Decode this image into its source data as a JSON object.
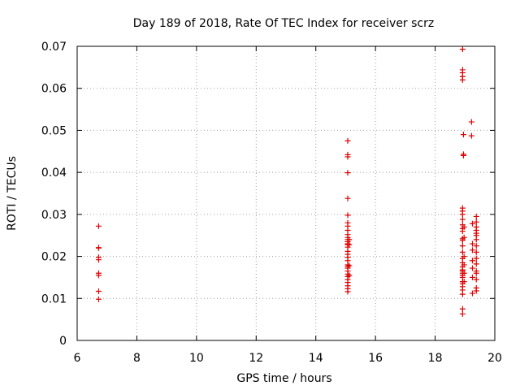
{
  "chart_data": {
    "type": "scatter",
    "title": "Day 189 of 2018, Rate Of TEC Index for receiver scrz",
    "xlabel": "GPS time / hours",
    "ylabel": "ROTI / TECUs",
    "xlim": [
      6,
      20
    ],
    "ylim": [
      0,
      0.07
    ],
    "xticks": [
      "6",
      "8",
      "10",
      "12",
      "14",
      "16",
      "18",
      "20"
    ],
    "yticks": [
      "0",
      "0.01",
      "0.02",
      "0.03",
      "0.04",
      "0.05",
      "0.06",
      "0.07"
    ],
    "grid": true,
    "marker": "+",
    "color": "#e00000",
    "series": [
      {
        "points": [
          [
            6.72,
            0.0272
          ],
          [
            6.72,
            0.0221
          ],
          [
            6.72,
            0.022
          ],
          [
            6.72,
            0.0198
          ],
          [
            6.72,
            0.0192
          ],
          [
            6.72,
            0.016
          ],
          [
            6.72,
            0.0155
          ],
          [
            6.72,
            0.0117
          ],
          [
            6.72,
            0.0098
          ],
          [
            15.07,
            0.0475
          ],
          [
            15.07,
            0.0442
          ],
          [
            15.07,
            0.0437
          ],
          [
            15.07,
            0.0399
          ],
          [
            15.07,
            0.0338
          ],
          [
            15.07,
            0.0298
          ],
          [
            15.07,
            0.028
          ],
          [
            15.07,
            0.0272
          ],
          [
            15.07,
            0.0262
          ],
          [
            15.07,
            0.0252
          ],
          [
            15.07,
            0.0245
          ],
          [
            15.07,
            0.024
          ],
          [
            15.07,
            0.0235
          ],
          [
            15.07,
            0.023
          ],
          [
            15.07,
            0.0228
          ],
          [
            15.07,
            0.0222
          ],
          [
            15.07,
            0.0212
          ],
          [
            15.07,
            0.0205
          ],
          [
            15.07,
            0.0198
          ],
          [
            15.07,
            0.019
          ],
          [
            15.07,
            0.018
          ],
          [
            15.07,
            0.0176
          ],
          [
            15.07,
            0.0172
          ],
          [
            15.07,
            0.0165
          ],
          [
            15.07,
            0.0158
          ],
          [
            15.07,
            0.0152
          ],
          [
            15.07,
            0.0145
          ],
          [
            15.07,
            0.0138
          ],
          [
            15.07,
            0.013
          ],
          [
            15.07,
            0.0123
          ],
          [
            15.07,
            0.0116
          ],
          [
            15.12,
            0.024
          ],
          [
            15.12,
            0.0228
          ],
          [
            15.12,
            0.0178
          ],
          [
            15.12,
            0.0155
          ],
          [
            18.92,
            0.0693
          ],
          [
            18.92,
            0.0644
          ],
          [
            18.92,
            0.0637
          ],
          [
            18.92,
            0.0628
          ],
          [
            18.92,
            0.062
          ],
          [
            18.95,
            0.049
          ],
          [
            18.95,
            0.0443
          ],
          [
            18.95,
            0.044
          ],
          [
            18.92,
            0.0315
          ],
          [
            18.92,
            0.0308
          ],
          [
            18.92,
            0.03
          ],
          [
            18.92,
            0.0288
          ],
          [
            18.92,
            0.0275
          ],
          [
            18.92,
            0.0266
          ],
          [
            18.92,
            0.026
          ],
          [
            18.92,
            0.0242
          ],
          [
            18.92,
            0.0238
          ],
          [
            18.92,
            0.0225
          ],
          [
            18.92,
            0.021
          ],
          [
            18.92,
            0.0195
          ],
          [
            18.92,
            0.0185
          ],
          [
            18.92,
            0.0175
          ],
          [
            18.92,
            0.0168
          ],
          [
            18.92,
            0.0165
          ],
          [
            18.92,
            0.016
          ],
          [
            18.92,
            0.0155
          ],
          [
            18.92,
            0.015
          ],
          [
            18.92,
            0.014
          ],
          [
            18.92,
            0.0135
          ],
          [
            18.92,
            0.0128
          ],
          [
            18.92,
            0.012
          ],
          [
            18.92,
            0.011
          ],
          [
            18.92,
            0.0075
          ],
          [
            18.92,
            0.0063
          ],
          [
            18.97,
            0.027
          ],
          [
            18.97,
            0.0245
          ],
          [
            18.97,
            0.02
          ],
          [
            18.97,
            0.018
          ],
          [
            18.97,
            0.016
          ],
          [
            18.97,
            0.014
          ],
          [
            19.22,
            0.052
          ],
          [
            19.22,
            0.0487
          ],
          [
            19.25,
            0.0278
          ],
          [
            19.25,
            0.023
          ],
          [
            19.25,
            0.0215
          ],
          [
            19.25,
            0.019
          ],
          [
            19.25,
            0.0172
          ],
          [
            19.25,
            0.015
          ],
          [
            19.25,
            0.0112
          ],
          [
            19.38,
            0.0295
          ],
          [
            19.38,
            0.0282
          ],
          [
            19.38,
            0.027
          ],
          [
            19.38,
            0.0262
          ],
          [
            19.38,
            0.0255
          ],
          [
            19.38,
            0.025
          ],
          [
            19.38,
            0.024
          ],
          [
            19.38,
            0.0225
          ],
          [
            19.38,
            0.021
          ],
          [
            19.38,
            0.0195
          ],
          [
            19.38,
            0.0182
          ],
          [
            19.38,
            0.0165
          ],
          [
            19.38,
            0.016
          ],
          [
            19.38,
            0.0145
          ],
          [
            19.38,
            0.0125
          ],
          [
            19.38,
            0.0118
          ]
        ]
      }
    ]
  }
}
